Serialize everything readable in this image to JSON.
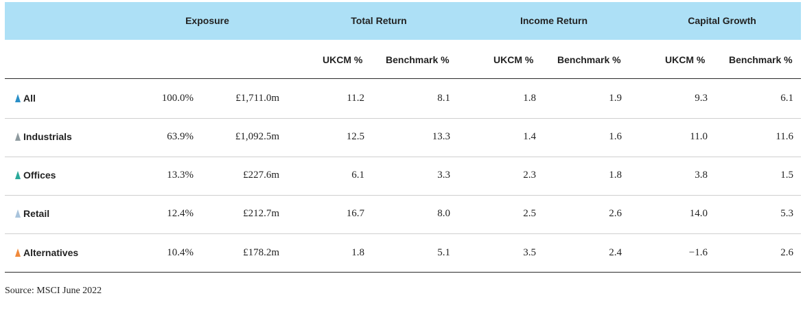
{
  "header": {
    "groups": [
      "Exposure",
      "Total Return",
      "Income Return",
      "Capital Growth"
    ],
    "subcolumns": [
      "UKCM %",
      "Benchmark %",
      "UKCM %",
      "Benchmark %",
      "UKCM %",
      "Benchmark %"
    ]
  },
  "rows": [
    {
      "label": "All",
      "icon_color": "#2a8fc7",
      "exposure_pct": "100.0%",
      "exposure_value": "£1,711.0m",
      "tr_ukcm": "11.2",
      "tr_bench": "8.1",
      "ir_ukcm": "1.8",
      "ir_bench": "1.9",
      "cg_ukcm": "9.3",
      "cg_bench": "6.1"
    },
    {
      "label": "Industrials",
      "icon_color": "#8e9a9e",
      "exposure_pct": "63.9%",
      "exposure_value": "£1,092.5m",
      "tr_ukcm": "12.5",
      "tr_bench": "13.3",
      "ir_ukcm": "1.4",
      "ir_bench": "1.6",
      "cg_ukcm": "11.0",
      "cg_bench": "11.6"
    },
    {
      "label": "Offices",
      "icon_color": "#2aa99a",
      "exposure_pct": "13.3%",
      "exposure_value": "£227.6m",
      "tr_ukcm": "6.1",
      "tr_bench": "3.3",
      "ir_ukcm": "2.3",
      "ir_bench": "1.8",
      "cg_ukcm": "3.8",
      "cg_bench": "1.5"
    },
    {
      "label": "Retail",
      "icon_color": "#a9c4dc",
      "exposure_pct": "12.4%",
      "exposure_value": "£212.7m",
      "tr_ukcm": "16.7",
      "tr_bench": "8.0",
      "ir_ukcm": "2.5",
      "ir_bench": "2.6",
      "cg_ukcm": "14.0",
      "cg_bench": "5.3"
    },
    {
      "label": "Alternatives",
      "icon_color": "#f08a3c",
      "exposure_pct": "10.4%",
      "exposure_value": "£178.2m",
      "tr_ukcm": "1.8",
      "tr_bench": "5.1",
      "ir_ukcm": "3.5",
      "ir_bench": "2.4",
      "cg_ukcm": "−1.6",
      "cg_bench": "2.6"
    }
  ],
  "source": "Source: MSCI June 2022",
  "colors": {
    "header_bg": "#ade0f6"
  }
}
